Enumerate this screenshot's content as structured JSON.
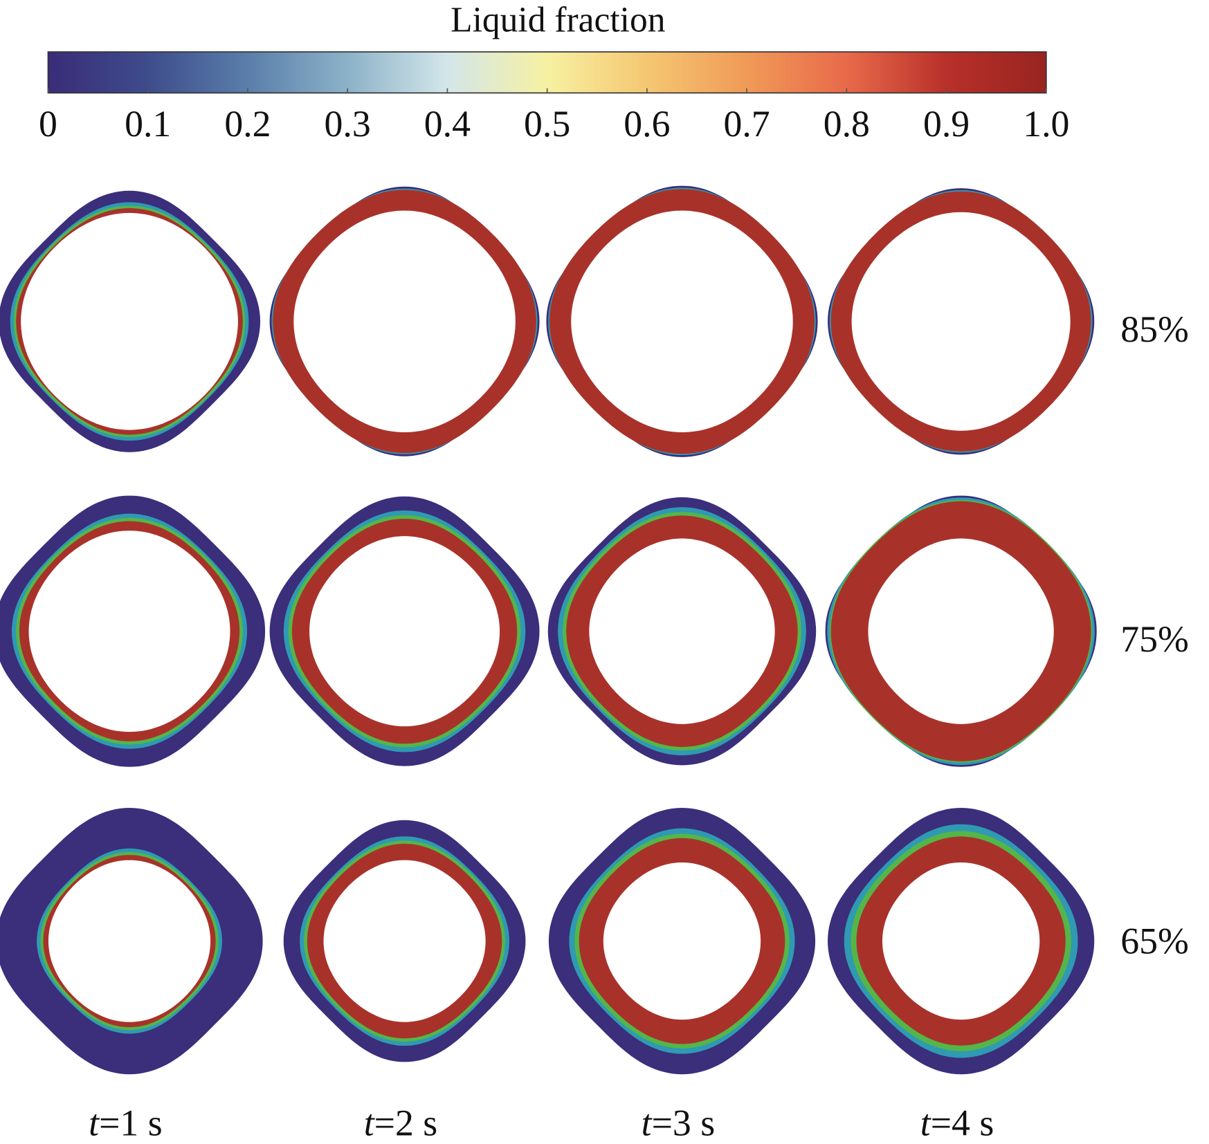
{
  "colorbar": {
    "title": "Liquid fraction",
    "ticks": [
      "0",
      "0.1",
      "0.2",
      "0.3",
      "0.4",
      "0.5",
      "0.6",
      "0.7",
      "0.8",
      "0.9",
      "1.0"
    ]
  },
  "rows": [
    "85%",
    "75%",
    "65%"
  ],
  "columns": [
    {
      "symbol": "t",
      "value": "=1 s"
    },
    {
      "symbol": "t",
      "value": "=2 s"
    },
    {
      "symbol": "t",
      "value": "=3 s"
    },
    {
      "symbol": "t",
      "value": "=4 s"
    }
  ]
}
